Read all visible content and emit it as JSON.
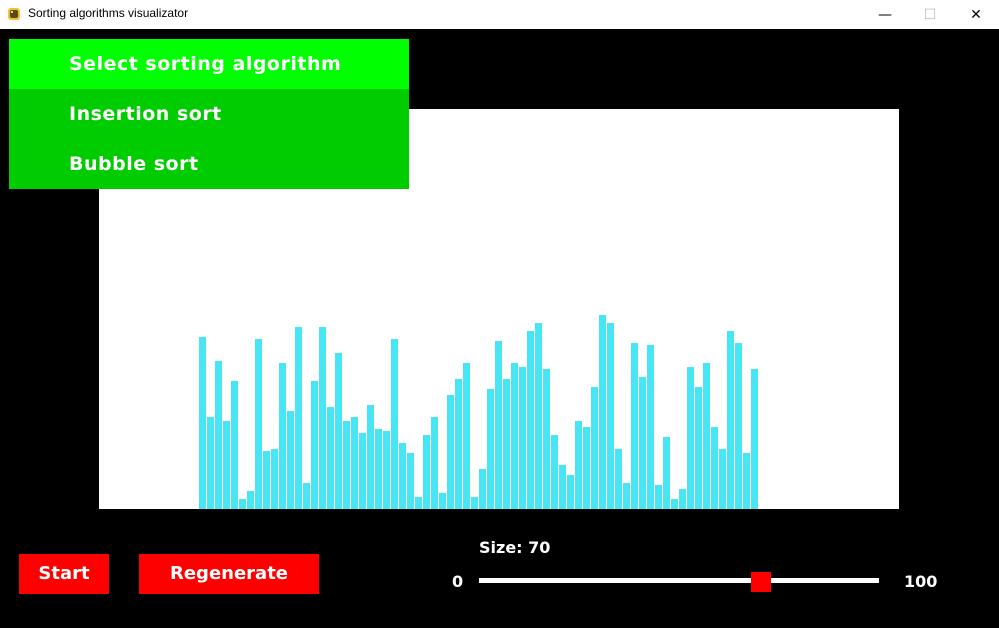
{
  "window": {
    "title": "Sorting algorithms visualizator",
    "minimize_icon": "minimize-icon",
    "maximize_icon": "maximize-icon",
    "close_icon": "close-icon",
    "minimize_glyph": "—",
    "maximize_glyph": "☐",
    "close_glyph": "✕"
  },
  "menu": {
    "header": "Select sorting algorithm",
    "options": [
      "Insertion sort",
      "Bubble sort"
    ]
  },
  "buttons": {
    "start": "Start",
    "regenerate": "Regenerate"
  },
  "slider": {
    "label": "Size: 70",
    "min_label": "0",
    "max_label": "100",
    "value": 70,
    "min": 0,
    "max": 100
  },
  "colors": {
    "bar": "#48e6f4",
    "menu_header": "#00ff00",
    "menu_option": "#00cc00",
    "button": "#ff0000"
  },
  "chart_data": {
    "type": "bar",
    "ylim": [
      0,
      400
    ],
    "values": [
      172,
      92,
      148,
      88,
      128,
      10,
      18,
      170,
      58,
      60,
      146,
      98,
      182,
      26,
      128,
      182,
      102,
      156,
      88,
      92,
      76,
      104,
      80,
      78,
      170,
      66,
      56,
      12,
      74,
      92,
      16,
      114,
      130,
      146,
      12,
      40,
      120,
      168,
      130,
      146,
      142,
      178,
      186,
      140,
      74,
      44,
      34,
      88,
      82,
      122,
      194,
      186,
      60,
      26,
      166,
      132,
      164,
      24,
      72,
      10,
      20,
      142,
      122,
      146,
      82,
      60,
      178,
      166,
      56,
      140
    ]
  }
}
